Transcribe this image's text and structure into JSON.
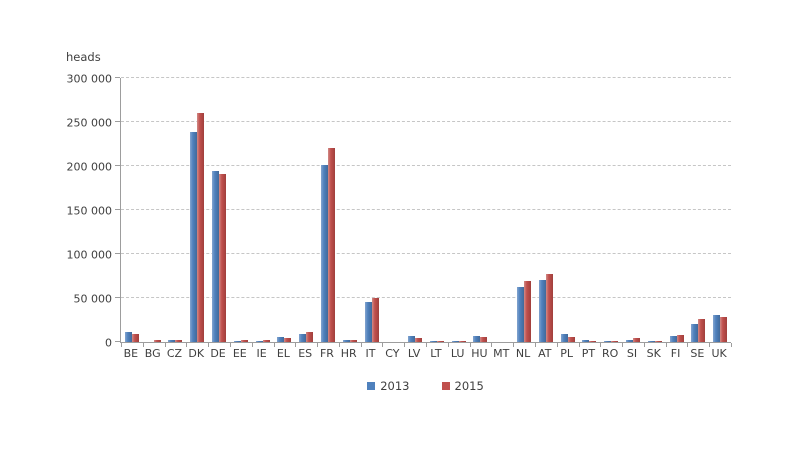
{
  "figure": {
    "unit_label": "heads"
  },
  "colors": {
    "grid": "#c6c6c6",
    "axis": "#9d9d9d",
    "text": "#3f3f3f",
    "series_2013": "#4f81bd",
    "series_2015": "#c0504d"
  },
  "chart_data": {
    "type": "bar",
    "title": "",
    "xlabel": "",
    "ylabel": "heads",
    "ylim": [
      0,
      300000
    ],
    "ytick_interval": 50000,
    "ytick_labels": [
      "0",
      "50 000",
      "100 000",
      "150 000",
      "200 000",
      "250 000",
      "300 000"
    ],
    "grid": "horizontal-dashed",
    "legend_position": "bottom-center",
    "categories": [
      "BE",
      "BG",
      "CZ",
      "DK",
      "DE",
      "EE",
      "IE",
      "EL",
      "ES",
      "FR",
      "HR",
      "IT",
      "CY",
      "LV",
      "LT",
      "LU",
      "HU",
      "MT",
      "NL",
      "AT",
      "PL",
      "PT",
      "RO",
      "SI",
      "SK",
      "FI",
      "SE",
      "UK"
    ],
    "series": [
      {
        "name": "2013",
        "color": "#4f81bd",
        "color_light": "#84a5cf",
        "color_dark": "#41699a",
        "values": [
          11000,
          300,
          2500,
          239000,
          194000,
          1500,
          1000,
          5500,
          9000,
          201000,
          2000,
          45000,
          400,
          6500,
          1500,
          1500,
          6500,
          100,
          63000,
          70000,
          9500,
          2000,
          1000,
          2500,
          1000,
          6500,
          21000,
          30500
        ]
      },
      {
        "name": "2015",
        "color": "#c0504d",
        "color_light": "#d18a87",
        "color_dark": "#a03f3c",
        "values": [
          9500,
          2000,
          2500,
          260000,
          191000,
          2000,
          2000,
          5000,
          11500,
          220000,
          2000,
          50000,
          400,
          4500,
          1500,
          1500,
          6000,
          100,
          69000,
          77000,
          6000,
          1500,
          1500,
          4000,
          1500,
          7500,
          26000,
          28500
        ]
      }
    ]
  }
}
